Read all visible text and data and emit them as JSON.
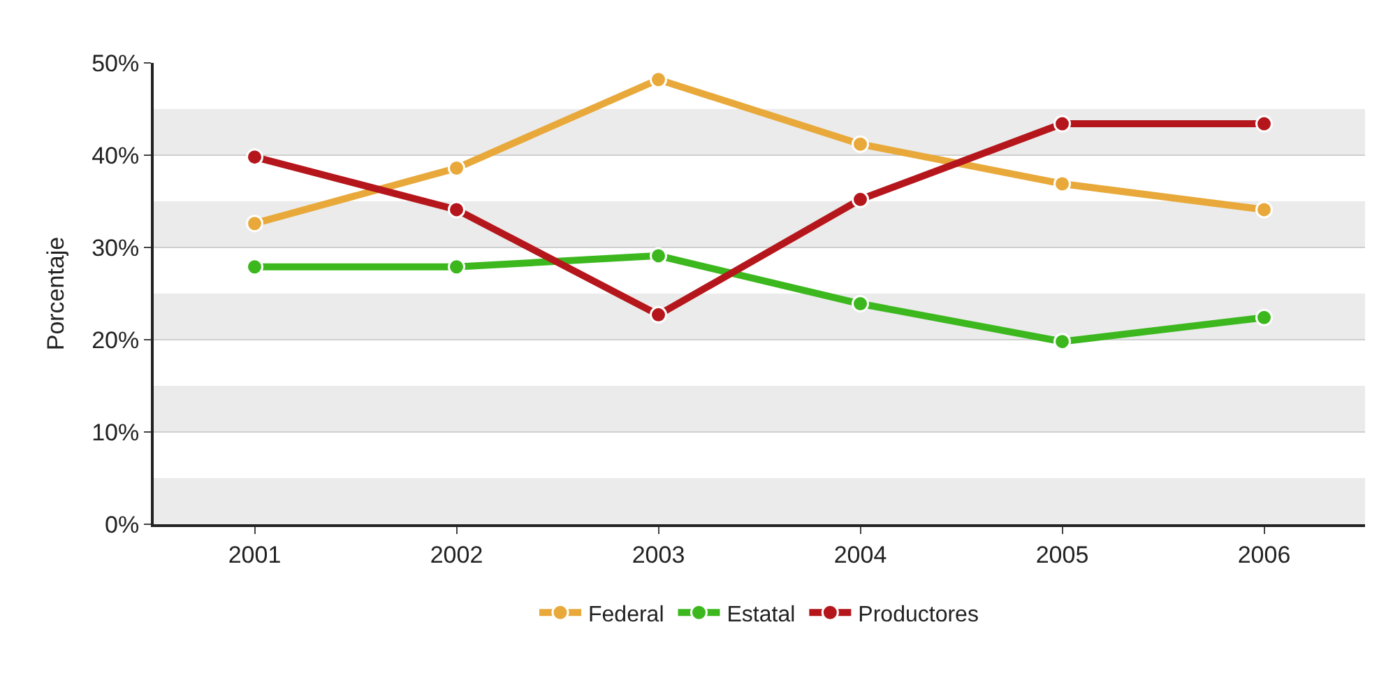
{
  "chart_data": {
    "type": "line",
    "ylabel": "Porcentaje",
    "categories": [
      "2001",
      "2002",
      "2003",
      "2004",
      "2005",
      "2006"
    ],
    "series": [
      {
        "name": "Federal",
        "color": "#e8a93a",
        "values": [
          32.6,
          38.6,
          48.2,
          41.2,
          36.9,
          34.1
        ]
      },
      {
        "name": "Estatal",
        "color": "#3cb81e",
        "values": [
          27.9,
          27.9,
          29.1,
          23.9,
          19.8,
          22.4
        ]
      },
      {
        "name": "Productores",
        "color": "#b5161b",
        "values": [
          39.8,
          34.1,
          22.7,
          35.2,
          43.4,
          43.4
        ]
      }
    ],
    "ylim": [
      0,
      50
    ],
    "yticks": [
      {
        "value": 0,
        "label": "0%"
      },
      {
        "value": 10,
        "label": "10%"
      },
      {
        "value": 20,
        "label": "20%"
      },
      {
        "value": 30,
        "label": "30%"
      },
      {
        "value": 40,
        "label": "40%"
      },
      {
        "value": 50,
        "label": "50%"
      }
    ],
    "bands": [
      {
        "axis": "y",
        "from": 0,
        "to": 5,
        "color": "#ebebeb"
      },
      {
        "axis": "y",
        "from": 10,
        "to": 15,
        "color": "#ebebeb"
      },
      {
        "axis": "y",
        "from": 20,
        "to": 25,
        "color": "#ebebeb"
      },
      {
        "axis": "y",
        "from": 30,
        "to": 35,
        "color": "#ebebeb"
      },
      {
        "axis": "y",
        "from": 40,
        "to": 45,
        "color": "#ebebeb"
      }
    ],
    "grid": "y",
    "legend": "bottom",
    "marker": "circle",
    "line_style": "solid"
  }
}
